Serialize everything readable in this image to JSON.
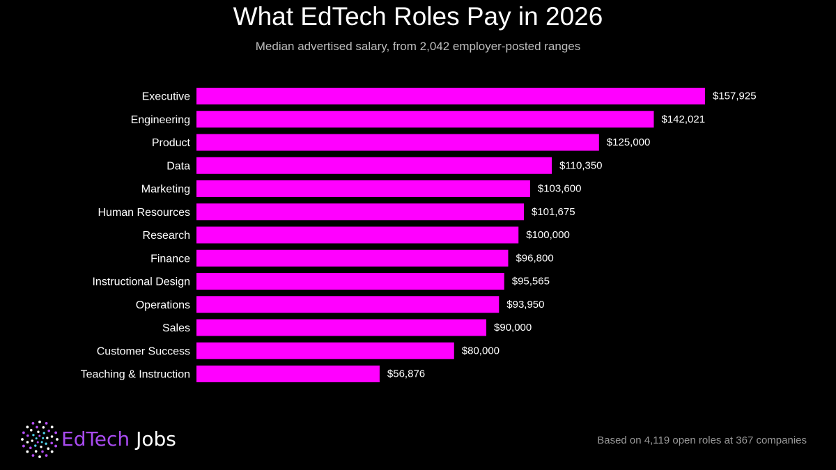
{
  "title": "What EdTech Roles Pay in 2026",
  "subtitle": "Median advertised salary, from 2,042 employer-posted ranges",
  "footnote": "Based on 4,119 open roles at 367 companies",
  "brand": {
    "name_part1": "EdTech",
    "name_part2": "Jobs",
    "logo_icon": "dotted-starburst-icon",
    "accent_color": "#a84bf0"
  },
  "colors": {
    "background": "#000000",
    "bar": "#ff00ff",
    "text": "#ffffff",
    "muted_text": "#9a9a9a"
  },
  "chart_data": {
    "type": "bar",
    "orientation": "horizontal",
    "title": "What EdTech Roles Pay in 2026",
    "subtitle": "Median advertised salary, from 2,042 employer-posted ranges",
    "xlabel": "",
    "ylabel": "",
    "grid": false,
    "legend": "none",
    "xlim": [
      0,
      157925
    ],
    "categories": [
      "Executive",
      "Engineering",
      "Product",
      "Data",
      "Marketing",
      "Human Resources",
      "Research",
      "Finance",
      "Instructional Design",
      "Operations",
      "Sales",
      "Customer Success",
      "Teaching & Instruction"
    ],
    "values": [
      157925,
      142021,
      125000,
      110350,
      103600,
      101675,
      100000,
      96800,
      95565,
      93950,
      90000,
      80000,
      56876
    ],
    "value_labels": [
      "$157,925",
      "$142,021",
      "$125,000",
      "$110,350",
      "$103,600",
      "$101,675",
      "$100,000",
      "$96,800",
      "$95,565",
      "$93,950",
      "$90,000",
      "$80,000",
      "$56,876"
    ]
  }
}
